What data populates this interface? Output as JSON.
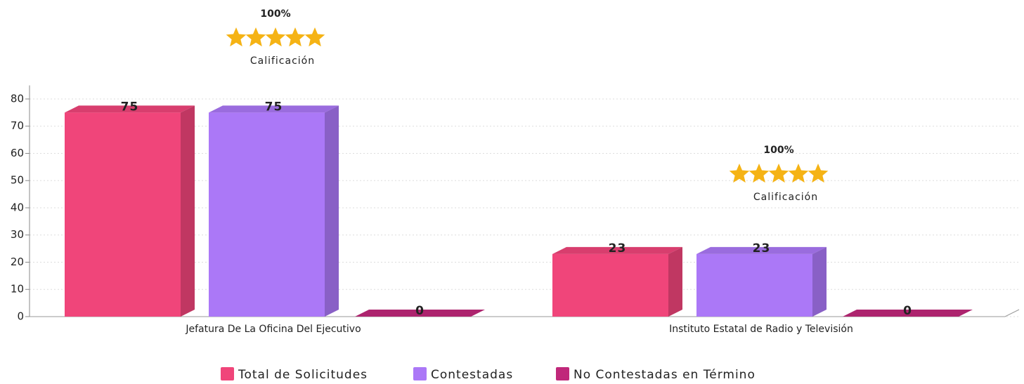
{
  "chart_data": {
    "type": "bar3d",
    "categories": [
      "Jefatura  De La Oficina  Del Ejecutivo",
      "Instituto Estatal de Radio y Televisión"
    ],
    "series": [
      {
        "name": "Total de Solicitudes",
        "color": "#f0457a",
        "values": [
          75,
          23
        ]
      },
      {
        "name": "Contestadas",
        "color": "#ab78f7",
        "values": [
          75,
          23
        ]
      },
      {
        "name": "No Contestadas en Término",
        "color": "#c0287a",
        "values": [
          0,
          0
        ]
      }
    ],
    "ylim": [
      0,
      85
    ],
    "yticks": [
      0,
      10,
      20,
      30,
      40,
      50,
      60,
      70,
      80
    ],
    "grid": true,
    "legend": "bottom",
    "annotations": [
      {
        "score": "100%",
        "caption": "Calificación"
      },
      {
        "score": "100%",
        "caption": "Calificación"
      }
    ]
  }
}
